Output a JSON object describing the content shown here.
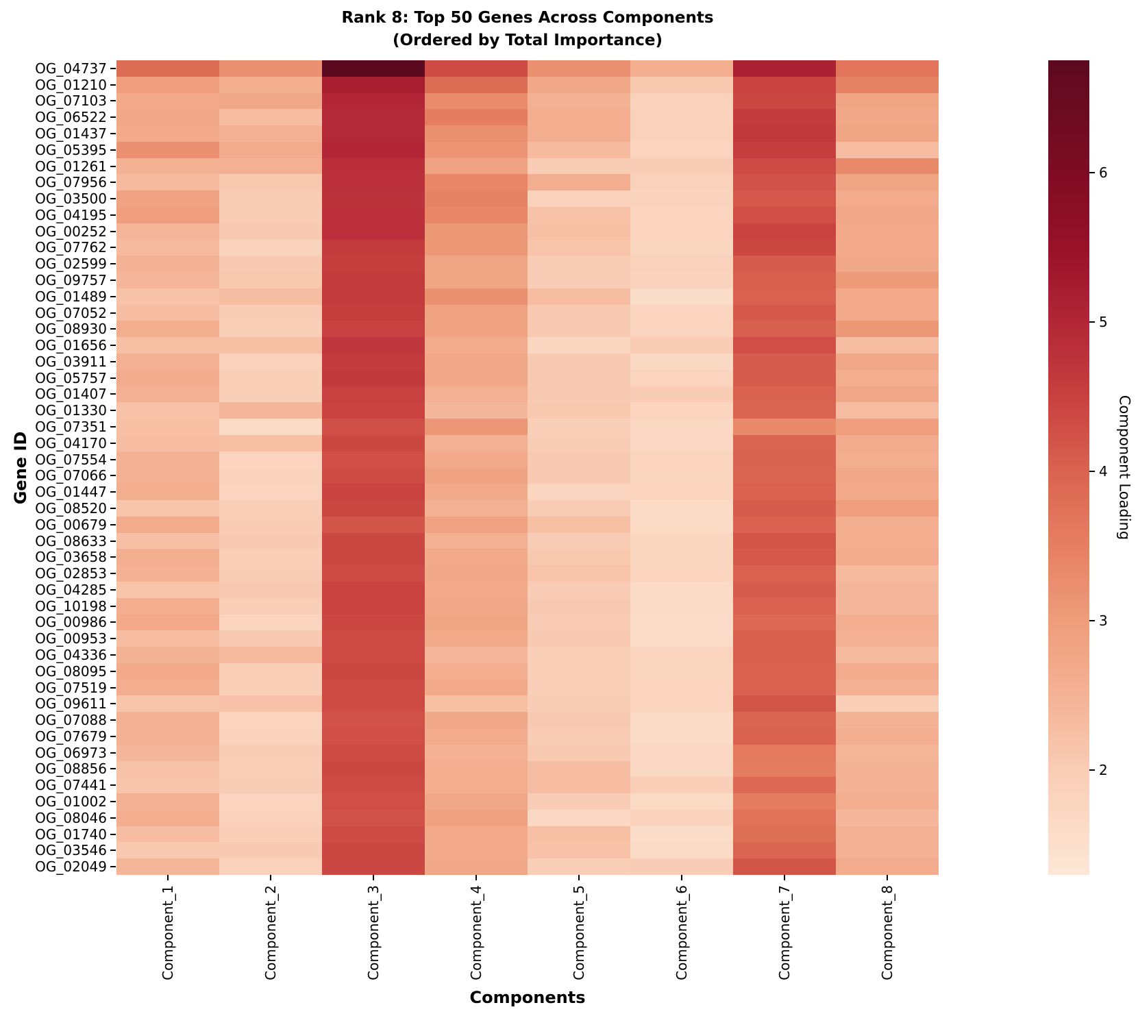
{
  "figure": {
    "title_line1": "Rank 8: Top 50 Genes Across Components",
    "title_line2": "(Ordered by Total Importance)"
  },
  "chart_data": {
    "type": "heatmap",
    "title": "Rank 8: Top 50 Genes Across Components (Ordered by Total Importance)",
    "xlabel": "Components",
    "ylabel": "Gene ID",
    "colorbar_label": "Component Loading",
    "legend_position": "right-colorbar",
    "grid": false,
    "vmin": 1.3,
    "vmax": 6.75,
    "colorbar_ticks": [
      2,
      3,
      4,
      5,
      6
    ],
    "colormap_stops": [
      [
        1.3,
        "#fde7d7"
      ],
      [
        2.0,
        "#f9cdb5"
      ],
      [
        2.5,
        "#f4b295"
      ],
      [
        3.0,
        "#ee9d7b"
      ],
      [
        3.5,
        "#e68062"
      ],
      [
        4.0,
        "#d96350"
      ],
      [
        4.5,
        "#c8403f"
      ],
      [
        5.0,
        "#b22637"
      ],
      [
        5.5,
        "#981129"
      ],
      [
        6.0,
        "#7e0c23"
      ],
      [
        6.75,
        "#5c0a20"
      ]
    ],
    "x_categories": [
      "Component_1",
      "Component_2",
      "Component_3",
      "Component_4",
      "Component_5",
      "Component_6",
      "Component_7",
      "Component_8"
    ],
    "y_categories": [
      "OG_04737",
      "OG_01210",
      "OG_07103",
      "OG_06522",
      "OG_01437",
      "OG_05395",
      "OG_01261",
      "OG_07956",
      "OG_03500",
      "OG_04195",
      "OG_00252",
      "OG_07762",
      "OG_02599",
      "OG_09757",
      "OG_01489",
      "OG_07052",
      "OG_08930",
      "OG_01656",
      "OG_03911",
      "OG_05757",
      "OG_01407",
      "OG_01330",
      "OG_07351",
      "OG_04170",
      "OG_07554",
      "OG_07066",
      "OG_01447",
      "OG_08520",
      "OG_00679",
      "OG_08633",
      "OG_03658",
      "OG_02853",
      "OG_04285",
      "OG_10198",
      "OG_00986",
      "OG_00953",
      "OG_04336",
      "OG_08095",
      "OG_07519",
      "OG_09611",
      "OG_07088",
      "OG_07679",
      "OG_06973",
      "OG_08856",
      "OG_07441",
      "OG_01002",
      "OG_08046",
      "OG_01740",
      "OG_03546",
      "OG_02049"
    ],
    "values": [
      [
        3.85,
        3.2,
        6.75,
        4.35,
        3.2,
        2.6,
        5.15,
        3.7
      ],
      [
        2.95,
        2.6,
        5.2,
        3.85,
        2.75,
        2.1,
        4.45,
        3.45
      ],
      [
        2.7,
        2.75,
        5.0,
        3.3,
        2.55,
        1.9,
        4.4,
        2.8
      ],
      [
        2.75,
        2.3,
        4.95,
        3.55,
        2.6,
        1.9,
        4.6,
        2.75
      ],
      [
        2.7,
        2.5,
        4.95,
        3.25,
        2.6,
        1.9,
        4.65,
        2.8
      ],
      [
        3.2,
        2.65,
        5.0,
        3.15,
        2.35,
        1.8,
        4.55,
        2.3
      ],
      [
        2.5,
        2.55,
        4.85,
        2.85,
        2.0,
        2.0,
        4.35,
        3.35
      ],
      [
        2.35,
        2.1,
        4.8,
        3.4,
        2.6,
        1.9,
        4.25,
        2.8
      ],
      [
        2.85,
        2.0,
        4.75,
        3.45,
        1.9,
        1.85,
        4.15,
        2.65
      ],
      [
        2.95,
        2.0,
        4.8,
        3.4,
        2.2,
        1.8,
        4.3,
        2.75
      ],
      [
        2.45,
        2.05,
        4.8,
        3.1,
        2.25,
        1.8,
        4.45,
        2.7
      ],
      [
        2.35,
        1.85,
        4.6,
        3.1,
        2.15,
        1.75,
        4.4,
        2.7
      ],
      [
        2.5,
        2.05,
        4.55,
        2.8,
        2.0,
        1.9,
        4.1,
        2.75
      ],
      [
        2.4,
        2.1,
        4.6,
        2.8,
        2.0,
        1.85,
        4.05,
        3.05
      ],
      [
        2.2,
        2.3,
        4.6,
        3.2,
        2.3,
        1.6,
        4.0,
        2.7
      ],
      [
        2.3,
        2.0,
        4.55,
        2.85,
        2.05,
        1.8,
        4.15,
        2.7
      ],
      [
        2.6,
        1.95,
        4.5,
        2.85,
        2.05,
        1.8,
        4.05,
        3.1
      ],
      [
        2.25,
        2.25,
        4.7,
        2.65,
        1.75,
        2.0,
        4.3,
        2.3
      ],
      [
        2.55,
        1.9,
        4.6,
        2.75,
        2.05,
        1.7,
        4.1,
        2.75
      ],
      [
        2.65,
        1.95,
        4.65,
        2.75,
        2.05,
        1.8,
        4.1,
        2.6
      ],
      [
        2.55,
        1.95,
        4.5,
        2.55,
        2.05,
        2.0,
        4.0,
        2.75
      ],
      [
        2.2,
        2.4,
        4.45,
        2.4,
        2.1,
        1.8,
        3.95,
        2.3
      ],
      [
        2.25,
        1.65,
        4.3,
        3.1,
        1.95,
        1.7,
        3.35,
        2.95
      ],
      [
        2.3,
        2.25,
        4.4,
        2.55,
        2.0,
        1.7,
        3.95,
        2.65
      ],
      [
        2.5,
        1.8,
        4.3,
        2.7,
        2.05,
        1.8,
        4.0,
        2.6
      ],
      [
        2.55,
        1.85,
        4.35,
        2.85,
        2.05,
        1.75,
        3.95,
        2.75
      ],
      [
        2.6,
        1.8,
        4.45,
        2.7,
        1.75,
        1.8,
        4.0,
        2.7
      ],
      [
        2.15,
        1.95,
        4.4,
        2.55,
        2.0,
        1.65,
        4.1,
        2.95
      ],
      [
        2.65,
        2.0,
        4.2,
        2.85,
        2.25,
        1.65,
        4.0,
        2.6
      ],
      [
        2.25,
        2.05,
        4.4,
        2.55,
        2.0,
        1.75,
        4.2,
        2.6
      ],
      [
        2.6,
        1.95,
        4.4,
        2.7,
        2.1,
        1.75,
        4.15,
        2.65
      ],
      [
        2.55,
        2.0,
        4.35,
        2.75,
        2.15,
        1.8,
        4.0,
        2.35
      ],
      [
        2.15,
        2.05,
        4.45,
        2.7,
        2.0,
        1.65,
        4.1,
        2.4
      ],
      [
        2.6,
        1.95,
        4.45,
        2.75,
        2.05,
        1.65,
        4.0,
        2.4
      ],
      [
        2.7,
        1.8,
        4.4,
        2.8,
        2.0,
        1.6,
        3.9,
        2.6
      ],
      [
        2.3,
        2.05,
        4.35,
        2.7,
        2.05,
        1.6,
        4.05,
        2.55
      ],
      [
        2.5,
        2.35,
        4.35,
        2.4,
        1.95,
        1.8,
        4.05,
        2.35
      ],
      [
        2.7,
        1.95,
        4.4,
        2.6,
        1.95,
        1.75,
        4.0,
        2.65
      ],
      [
        2.6,
        1.95,
        4.35,
        2.7,
        1.95,
        1.8,
        4.0,
        2.55
      ],
      [
        2.15,
        2.2,
        4.35,
        2.25,
        2.0,
        1.8,
        4.2,
        1.95
      ],
      [
        2.55,
        1.8,
        4.25,
        2.75,
        2.05,
        1.65,
        3.95,
        2.5
      ],
      [
        2.55,
        1.85,
        4.3,
        2.65,
        2.0,
        1.65,
        4.0,
        2.6
      ],
      [
        2.4,
        2.0,
        4.35,
        2.55,
        2.05,
        1.7,
        3.6,
        2.45
      ],
      [
        2.2,
        1.95,
        4.4,
        2.6,
        2.3,
        1.7,
        3.55,
        2.5
      ],
      [
        2.15,
        2.0,
        4.35,
        2.6,
        2.3,
        1.95,
        3.9,
        2.5
      ],
      [
        2.55,
        1.8,
        4.3,
        2.75,
        2.0,
        1.65,
        3.55,
        2.6
      ],
      [
        2.6,
        1.9,
        4.25,
        2.9,
        1.7,
        1.85,
        3.75,
        2.4
      ],
      [
        2.3,
        1.95,
        4.35,
        2.7,
        2.25,
        1.6,
        3.8,
        2.55
      ],
      [
        2.1,
        2.05,
        4.4,
        2.7,
        2.2,
        1.65,
        3.95,
        2.55
      ],
      [
        2.45,
        1.9,
        4.4,
        2.75,
        1.95,
        2.0,
        4.2,
        2.65
      ]
    ]
  }
}
